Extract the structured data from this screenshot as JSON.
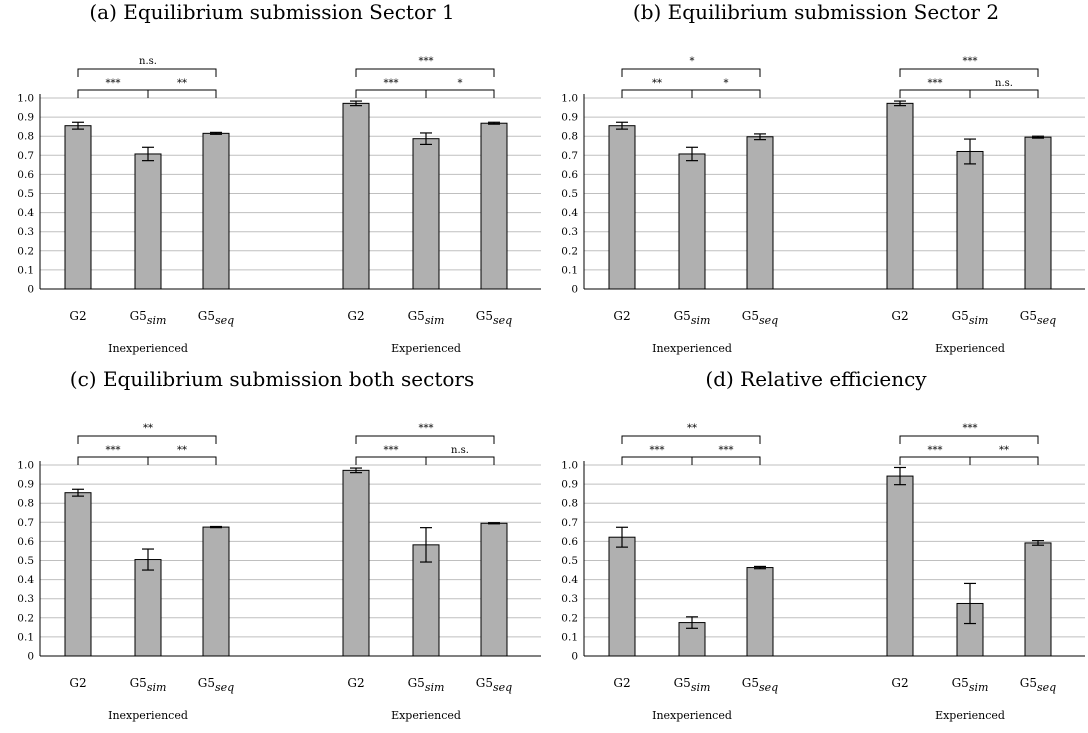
{
  "chart_data": [
    {
      "type": "bar",
      "title": "(a) Equilibrium submission Sector 1",
      "groups": [
        "Inexperienced",
        "Experienced"
      ],
      "categories": [
        "G2",
        "G5sim",
        "G5seq"
      ],
      "tick_labels": [
        "0",
        "0.1",
        "0.2",
        "0.3",
        "0.4",
        "0.5",
        "0.6",
        "0.7",
        "0.8",
        "0.9",
        "1.0"
      ],
      "ylim": [
        0,
        1.0
      ],
      "grid": true,
      "series": [
        {
          "values": [
            0.855,
            0.707,
            0.815
          ],
          "errors": [
            0.018,
            0.035,
            0.005
          ]
        },
        {
          "values": [
            0.972,
            0.787,
            0.868
          ],
          "errors": [
            0.012,
            0.03,
            0.005
          ]
        }
      ],
      "significance": [
        {
          "outer": "n.s.",
          "left": "***",
          "right": "**"
        },
        {
          "outer": "***",
          "left": "***",
          "right": "*"
        }
      ]
    },
    {
      "type": "bar",
      "title": "(b) Equilibrium submission Sector 2",
      "groups": [
        "Inexperienced",
        "Experienced"
      ],
      "categories": [
        "G2",
        "G5sim",
        "G5seq"
      ],
      "tick_labels": [
        "0",
        "0.1",
        "0.2",
        "0.3",
        "0.4",
        "0.5",
        "0.6",
        "0.7",
        "0.8",
        "0.9",
        "1.0"
      ],
      "ylim": [
        0,
        1.0
      ],
      "grid": true,
      "series": [
        {
          "values": [
            0.855,
            0.707,
            0.797
          ],
          "errors": [
            0.018,
            0.035,
            0.015
          ]
        },
        {
          "values": [
            0.972,
            0.72,
            0.795
          ],
          "errors": [
            0.012,
            0.065,
            0.005
          ]
        }
      ],
      "significance": [
        {
          "outer": "*",
          "left": "**",
          "right": "*"
        },
        {
          "outer": "***",
          "left": "***",
          "right": "n.s."
        }
      ]
    },
    {
      "type": "bar",
      "title": "(c) Equilibrium submission both sectors",
      "groups": [
        "Inexperienced",
        "Experienced"
      ],
      "categories": [
        "G2",
        "G5sim",
        "G5seq"
      ],
      "tick_labels": [
        "0",
        "0.1",
        "0.2",
        "0.3",
        "0.4",
        "0.5",
        "0.6",
        "0.7",
        "0.8",
        "0.9",
        "1.0"
      ],
      "ylim": [
        0,
        1.0
      ],
      "grid": true,
      "series": [
        {
          "values": [
            0.855,
            0.505,
            0.675
          ],
          "errors": [
            0.018,
            0.055,
            0.003
          ]
        },
        {
          "values": [
            0.972,
            0.582,
            0.695
          ],
          "errors": [
            0.012,
            0.09,
            0.003
          ]
        }
      ],
      "significance": [
        {
          "outer": "**",
          "left": "***",
          "right": "**"
        },
        {
          "outer": "***",
          "left": "***",
          "right": "n.s."
        }
      ]
    },
    {
      "type": "bar",
      "title": "(d) Relative efficiency",
      "groups": [
        "Inexperienced",
        "Experienced"
      ],
      "categories": [
        "G2",
        "G5sim",
        "G5seq"
      ],
      "tick_labels": [
        "0",
        "0.1",
        "0.2",
        "0.3",
        "0.4",
        "0.5",
        "0.6",
        "0.7",
        "0.8",
        "0.9",
        "1.0"
      ],
      "ylim": [
        0,
        1.0
      ],
      "grid": true,
      "series": [
        {
          "values": [
            0.622,
            0.175,
            0.463
          ],
          "errors": [
            0.052,
            0.03,
            0.006
          ]
        },
        {
          "values": [
            0.942,
            0.275,
            0.592
          ],
          "errors": [
            0.045,
            0.105,
            0.012
          ]
        }
      ],
      "significance": [
        {
          "outer": "**",
          "left": "***",
          "right": "***"
        },
        {
          "outer": "***",
          "left": "***",
          "right": "**"
        }
      ]
    }
  ]
}
